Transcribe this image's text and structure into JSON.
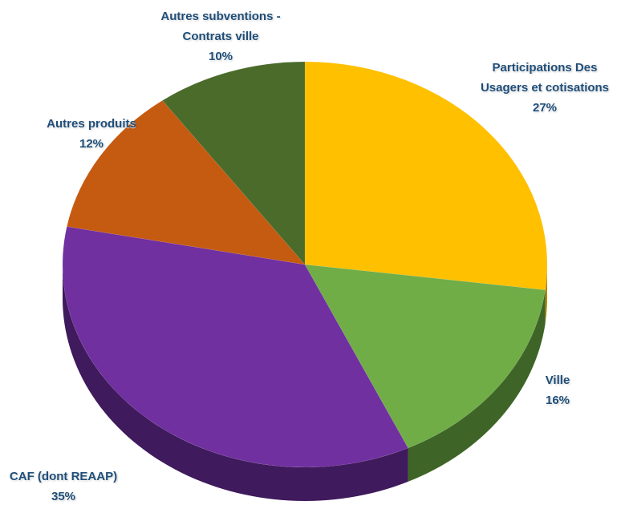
{
  "chart_data": {
    "type": "pie",
    "style": "3d",
    "slices": [
      {
        "label_lines": [
          "Participations Des",
          "Usagers et cotisations"
        ],
        "label": "Participations Des Usagers et cotisations",
        "value": 27,
        "value_label": "27%",
        "color": "#ffc000",
        "side_color": "#b38600"
      },
      {
        "label_lines": [
          "Ville"
        ],
        "label": "Ville",
        "value": 16,
        "value_label": "16%",
        "color": "#70ad47",
        "side_color": "#3e6527"
      },
      {
        "label_lines": [
          "CAF (dont REAAP)"
        ],
        "label": "CAF (dont REAAP)",
        "value": 35,
        "value_label": "35%",
        "color": "#7030a0",
        "side_color": "#3f1a5c"
      },
      {
        "label_lines": [
          "Autres produits"
        ],
        "label": "Autres produits",
        "value": 12,
        "value_label": "12%",
        "color": "#c55a11",
        "side_color": "#7a370a"
      },
      {
        "label_lines": [
          "Autres subventions -",
          "Contrats ville"
        ],
        "label": "Autres subventions - Contrats ville",
        "value": 10,
        "value_label": "10%",
        "color": "#4a6b2a",
        "side_color": "#2c4118"
      }
    ]
  }
}
